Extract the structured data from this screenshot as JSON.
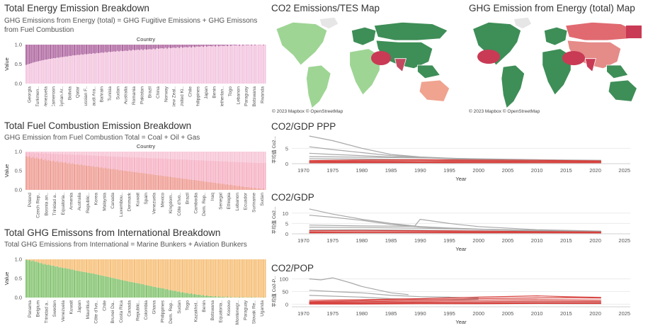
{
  "colors": {
    "fugitive": "#b06aa2",
    "combustion_top": "#f3c6df",
    "coal": "#ee9e95",
    "oil": "#f6b3c6",
    "gas": "#f7c6d6",
    "marine": "#86c472",
    "aviation": "#f6c07a",
    "map_low": "#9ed594",
    "map_mid": "#3e8e57",
    "map_high": "#c93a55",
    "line_gray": "#a8a8a8",
    "line_red": "#d7413d"
  },
  "panels": {
    "energy": {
      "title": "Total Energy Emission Breakdown",
      "subtitle": "GHG Emissions from Energy (total) = GHG Fugitive Emissions + GHG Emissons from Fuel Combustion",
      "header": "Country",
      "ylabel": "Value"
    },
    "fuel": {
      "title": "Total Fuel Combustion Emission Breakdown",
      "subtitle": "GHG Emission from Fuel Combustion Total = Coal + Oil + Gas",
      "header": "Country",
      "ylabel": "Value"
    },
    "intl": {
      "title": "Total GHG Emissons from International Breakdown",
      "subtitle": "Total GHG Emissions from International = Marine Bunkers + Aviation Bunkers",
      "ylabel": "Value"
    },
    "map1": {
      "title": "CO2 Emissions/TES Map",
      "copyright": "© 2023 Mapbox © OpenStreetMap"
    },
    "map2": {
      "title": "GHG Emission from Energy (total) Map",
      "copyright": "© 2023 Mapbox © OpenStreetMap"
    },
    "gdpppp": {
      "title": "CO2/GDP PPP",
      "ylabel": "平均值 Co2...",
      "xlabel": "Year"
    },
    "gdp": {
      "title": "CO2/GDP",
      "ylabel": "平均值 Co2...",
      "xlabel": "Year"
    },
    "pop": {
      "title": "CO2/POP",
      "ylabel": "平均值 Co2-P...",
      "xlabel": "Year"
    }
  },
  "chart_data": [
    {
      "id": "energy",
      "type": "bar",
      "stacked": true,
      "normalized": true,
      "title": "Total Energy Emission Breakdown",
      "ylabel": "Value",
      "ylim": [
        0,
        1
      ],
      "yticks": [
        "1.0",
        "0.5",
        "0.0"
      ],
      "categories": [
        "Georgia",
        "Turkmen..",
        "Venezuela",
        "Cameroon",
        "Syrian Ar..",
        "Bolivia",
        "Qatar",
        "Russian F..",
        "Saudi Ara..",
        "Bahrain",
        "Tunisia",
        "Sudan",
        "Australia",
        "Romania",
        "Pakistan",
        "Brazil",
        "China",
        "Norway",
        "New Zeal..",
        "United Ki..",
        "Chile",
        "Philippines",
        "Japan",
        "Benin",
        "Netherlan..",
        "Togo",
        "Lebanon",
        "Paraguay",
        "Botswana",
        "Rwanda"
      ],
      "series": [
        {
          "key": "fugitive",
          "values": [
            0.52,
            0.45,
            0.4,
            0.36,
            0.33,
            0.3,
            0.27,
            0.25,
            0.23,
            0.21,
            0.19,
            0.17,
            0.16,
            0.14,
            0.13,
            0.12,
            0.1,
            0.09,
            0.08,
            0.07,
            0.06,
            0.05,
            0.04,
            0.035,
            0.03,
            0.02,
            0.015,
            0.01,
            0.005,
            0.002
          ]
        },
        {
          "key": "combustion_top",
          "values": [
            0.48,
            0.55,
            0.6,
            0.64,
            0.67,
            0.7,
            0.73,
            0.75,
            0.77,
            0.79,
            0.81,
            0.83,
            0.84,
            0.86,
            0.87,
            0.88,
            0.9,
            0.91,
            0.92,
            0.93,
            0.94,
            0.95,
            0.96,
            0.965,
            0.97,
            0.98,
            0.985,
            0.99,
            0.995,
            0.998
          ]
        }
      ]
    },
    {
      "id": "fuel",
      "type": "bar",
      "stacked": true,
      "normalized": true,
      "title": "Total Fuel Combustion Emission Breakdown",
      "ylabel": "Value",
      "ylim": [
        0,
        1
      ],
      "yticks": [
        "1.0",
        "0.5",
        "0.0"
      ],
      "categories": [
        "Poland",
        "Czech Rep..",
        "Bosnia an..",
        "Trinidad a..",
        "Equatoria..",
        "Armenia",
        "Australia",
        "Republic..",
        "Korea",
        "Malaysia",
        "Canada",
        "Luxembou..",
        "Denmark",
        "Kuwait",
        "Spain",
        "Venezuela",
        "Mexico",
        "Kingdom..",
        "Côte d'Ivo..",
        "Brazil",
        "Cambodia",
        "Dem. Rep..",
        "Iraq",
        "Senegal",
        "Ethiopia",
        "Lebanon",
        "Ecuador",
        "Suriname",
        "Sudan"
      ],
      "series": [
        {
          "key": "coal",
          "values": [
            0.88,
            0.84,
            0.8,
            0.76,
            0.73,
            0.7,
            0.67,
            0.64,
            0.61,
            0.58,
            0.55,
            0.52,
            0.49,
            0.46,
            0.43,
            0.4,
            0.37,
            0.34,
            0.31,
            0.28,
            0.25,
            0.22,
            0.19,
            0.16,
            0.13,
            0.1,
            0.07,
            0.04,
            0.02
          ]
        },
        {
          "key": "oil",
          "values": [
            0.1,
            0.13,
            0.16,
            0.19,
            0.21,
            0.23,
            0.25,
            0.27,
            0.29,
            0.31,
            0.33,
            0.35,
            0.37,
            0.39,
            0.41,
            0.43,
            0.45,
            0.47,
            0.49,
            0.51,
            0.53,
            0.55,
            0.57,
            0.59,
            0.61,
            0.63,
            0.65,
            0.67,
            0.69
          ]
        },
        {
          "key": "gas",
          "values": [
            0.02,
            0.03,
            0.04,
            0.05,
            0.06,
            0.07,
            0.08,
            0.09,
            0.1,
            0.11,
            0.12,
            0.13,
            0.14,
            0.15,
            0.16,
            0.17,
            0.18,
            0.19,
            0.2,
            0.21,
            0.22,
            0.23,
            0.24,
            0.25,
            0.26,
            0.27,
            0.28,
            0.29,
            0.29
          ]
        }
      ]
    },
    {
      "id": "intl",
      "type": "bar",
      "stacked": true,
      "normalized": true,
      "title": "Total GHG Emissons from International Breakdown",
      "ylabel": "Value",
      "ylim": [
        0,
        1
      ],
      "yticks": [
        "1.0",
        "0.5",
        "0.0"
      ],
      "categories": [
        "Panama",
        "Belgium",
        "Trinidad a..",
        "Sweden",
        "Venezuela",
        "Kuwait",
        "Japan",
        "Mauritius",
        "Côte d'Ivo..",
        "Chile",
        "Brunei Da..",
        "Costa Rica",
        "Canada",
        "Republic..",
        "Colombia",
        "Ghana",
        "Philippines",
        "Dem. Rep..",
        "Sudan",
        "Togo",
        "Kazakhst..",
        "Benin",
        "Botswana",
        "Equatoria..",
        "Kosovo",
        "Montenegr..",
        "Paraguay",
        "Slovak Re..",
        "Uganda"
      ],
      "series": [
        {
          "key": "marine",
          "values": [
            0.99,
            0.95,
            0.88,
            0.84,
            0.79,
            0.75,
            0.7,
            0.66,
            0.62,
            0.57,
            0.52,
            0.47,
            0.42,
            0.38,
            0.33,
            0.28,
            0.24,
            0.19,
            0.15,
            0.11,
            0.08,
            0.05,
            0.03,
            0.02,
            0.01,
            0.005,
            0.003,
            0.002,
            0.001
          ]
        },
        {
          "key": "aviation",
          "values": [
            0.01,
            0.05,
            0.12,
            0.16,
            0.21,
            0.25,
            0.3,
            0.34,
            0.38,
            0.43,
            0.48,
            0.53,
            0.58,
            0.62,
            0.67,
            0.72,
            0.76,
            0.81,
            0.85,
            0.89,
            0.92,
            0.95,
            0.97,
            0.98,
            0.99,
            0.995,
            0.997,
            0.998,
            0.999
          ]
        }
      ]
    },
    {
      "id": "gdpppp",
      "type": "line",
      "title": "CO2/GDP PPP",
      "xlabel": "Year",
      "ylabel": "平均值 Co2...",
      "xlim": [
        1968,
        2026
      ],
      "ylim": [
        0,
        9
      ],
      "xticks": [
        1970,
        1975,
        1980,
        1985,
        1990,
        1995,
        2000,
        2005,
        2010,
        2015,
        2020,
        2025
      ],
      "yticks": [
        0,
        5
      ],
      "series": [
        {
          "color": "gray",
          "x": [
            1971,
            1975,
            1980,
            1985,
            1990,
            1995,
            2000,
            2005,
            2010,
            2015,
            2021
          ],
          "y": [
            9.0,
            7.5,
            5.0,
            3.0,
            2.2,
            1.8,
            1.5,
            1.2,
            1.0,
            0.9,
            0.8
          ]
        },
        {
          "color": "gray",
          "x": [
            1971,
            1975,
            1980,
            1985,
            1990,
            1995,
            2000,
            2005,
            2010,
            2015,
            2021
          ],
          "y": [
            5.5,
            4.6,
            3.6,
            2.6,
            2.1,
            1.7,
            1.4,
            1.1,
            0.9,
            0.8,
            0.7
          ]
        },
        {
          "color": "gray",
          "x": [
            1971,
            1975,
            1980,
            1985,
            1990,
            1995,
            2000,
            2005,
            2010,
            2015,
            2021
          ],
          "y": [
            3.4,
            3.0,
            2.6,
            2.2,
            2.0,
            1.6,
            1.3,
            1.1,
            0.9,
            0.8,
            0.7
          ]
        },
        {
          "color": "gray",
          "x": [
            1971,
            1980,
            1990,
            2000,
            2010,
            2021
          ],
          "y": [
            2.3,
            2.1,
            1.9,
            1.6,
            1.3,
            1.1
          ]
        },
        {
          "color": "gray",
          "x": [
            1971,
            1980,
            1990,
            2000,
            2010,
            2021
          ],
          "y": [
            1.6,
            1.5,
            1.3,
            1.1,
            0.9,
            0.8
          ]
        },
        {
          "color": "red",
          "x": [
            1971,
            1980,
            1990,
            2000,
            2010,
            2021
          ],
          "y": [
            1.0,
            1.2,
            1.3,
            1.2,
            1.1,
            0.9
          ]
        },
        {
          "color": "red",
          "x": [
            1971,
            1980,
            1990,
            2000,
            2010,
            2021
          ],
          "y": [
            0.8,
            0.9,
            1.0,
            0.9,
            0.8,
            0.7
          ]
        },
        {
          "color": "red",
          "x": [
            1971,
            1980,
            1990,
            2000,
            2010,
            2021
          ],
          "y": [
            0.5,
            0.6,
            0.6,
            0.6,
            0.5,
            0.5
          ]
        },
        {
          "color": "red",
          "x": [
            1971,
            1980,
            1990,
            2000,
            2010,
            2021
          ],
          "y": [
            0.3,
            0.35,
            0.35,
            0.3,
            0.3,
            0.3
          ]
        }
      ]
    },
    {
      "id": "gdp",
      "type": "line",
      "title": "CO2/GDP",
      "xlabel": "Year",
      "ylabel": "平均值 Co2...",
      "xlim": [
        1968,
        2026
      ],
      "ylim": [
        0,
        13
      ],
      "xticks": [
        1970,
        1975,
        1980,
        1985,
        1990,
        1995,
        2000,
        2005,
        2010,
        2015,
        2020,
        2025
      ],
      "yticks": [
        0,
        5,
        10
      ],
      "series": [
        {
          "color": "gray",
          "x": [
            1971,
            1975,
            1980,
            1985,
            1990,
            1995,
            2000,
            2005,
            2010,
            2015,
            2021
          ],
          "y": [
            12.0,
            9.5,
            7.0,
            5.0,
            3.5,
            2.8,
            2.3,
            1.9,
            1.6,
            1.4,
            1.2
          ]
        },
        {
          "color": "gray",
          "x": [
            1971,
            1975,
            1980,
            1985,
            1990,
            1995,
            2000,
            2005,
            2010,
            2015,
            2021
          ],
          "y": [
            9.0,
            8.0,
            6.5,
            4.5,
            3.3,
            2.7,
            2.2,
            1.8,
            1.5,
            1.3,
            1.1
          ]
        },
        {
          "color": "gray",
          "x": [
            1971,
            1980,
            1989,
            1990,
            1995,
            2000,
            2010,
            2021
          ],
          "y": [
            4.2,
            3.8,
            3.6,
            7.0,
            5.0,
            3.5,
            2.0,
            1.3
          ]
        },
        {
          "color": "gray",
          "x": [
            1971,
            1980,
            1990,
            2000,
            2010,
            2021
          ],
          "y": [
            3.2,
            3.0,
            2.7,
            2.2,
            1.7,
            1.3
          ]
        },
        {
          "color": "gray",
          "x": [
            1971,
            1980,
            1990,
            2000,
            2010,
            2021
          ],
          "y": [
            2.0,
            1.9,
            1.7,
            1.5,
            1.2,
            1.0
          ]
        },
        {
          "color": "red",
          "x": [
            1971,
            1980,
            1990,
            2000,
            2010,
            2021
          ],
          "y": [
            1.5,
            1.6,
            1.5,
            1.3,
            1.1,
            0.9
          ]
        },
        {
          "color": "red",
          "x": [
            1971,
            1980,
            1990,
            2000,
            2010,
            2021
          ],
          "y": [
            0.9,
            1.0,
            1.0,
            0.9,
            0.8,
            0.7
          ]
        },
        {
          "color": "red",
          "x": [
            1971,
            1980,
            1990,
            2000,
            2010,
            2021
          ],
          "y": [
            0.5,
            0.6,
            0.6,
            0.5,
            0.5,
            0.4
          ]
        }
      ]
    },
    {
      "id": "pop",
      "type": "line",
      "title": "CO2/POP",
      "xlabel": "Year",
      "ylabel": "平均值 Co2-P...",
      "xlim": [
        1968,
        2026
      ],
      "ylim": [
        -10,
        110
      ],
      "xticks": [
        1970,
        1975,
        1980,
        1985,
        1990,
        1995,
        2000,
        2005,
        2010,
        2015,
        2020,
        2025
      ],
      "yticks": [
        0,
        50,
        100
      ],
      "series": [
        {
          "color": "gray",
          "x": [
            1971,
            1973,
            1975,
            1978,
            1980,
            1983,
            1985,
            1988
          ],
          "y": [
            100,
            96,
            104,
            85,
            70,
            55,
            45,
            38
          ]
        },
        {
          "color": "gray",
          "x": [
            1971,
            1975,
            1980,
            1985,
            1990,
            1995,
            2000
          ],
          "y": [
            55,
            50,
            45,
            35,
            30,
            28,
            25
          ]
        },
        {
          "color": "gray",
          "x": [
            1971,
            1975,
            1980,
            1985,
            1990,
            2000
          ],
          "y": [
            35,
            32,
            28,
            22,
            20,
            18
          ]
        },
        {
          "color": "red",
          "x": [
            1971,
            1980,
            1990,
            2000,
            2010,
            2015,
            2021
          ],
          "y": [
            15,
            18,
            22,
            28,
            33,
            30,
            27
          ]
        },
        {
          "color": "red",
          "x": [
            1971,
            1980,
            1990,
            2000,
            2010,
            2015,
            2021
          ],
          "y": [
            10,
            14,
            18,
            22,
            25,
            26,
            24
          ]
        },
        {
          "color": "red",
          "x": [
            1971,
            1980,
            1990,
            2000,
            2010,
            2021
          ],
          "y": [
            8,
            10,
            13,
            16,
            18,
            16
          ]
        },
        {
          "color": "red",
          "x": [
            1971,
            1980,
            1990,
            2000,
            2010,
            2021
          ],
          "y": [
            5,
            6,
            8,
            10,
            12,
            11
          ]
        },
        {
          "color": "red",
          "x": [
            1971,
            1980,
            1990,
            2000,
            2010,
            2021
          ],
          "y": [
            3,
            3,
            4,
            5,
            6,
            6
          ]
        },
        {
          "color": "red",
          "x": [
            1971,
            1980,
            1990,
            2000,
            2010,
            2021
          ],
          "y": [
            1,
            1,
            2,
            2,
            3,
            3
          ]
        }
      ]
    }
  ]
}
